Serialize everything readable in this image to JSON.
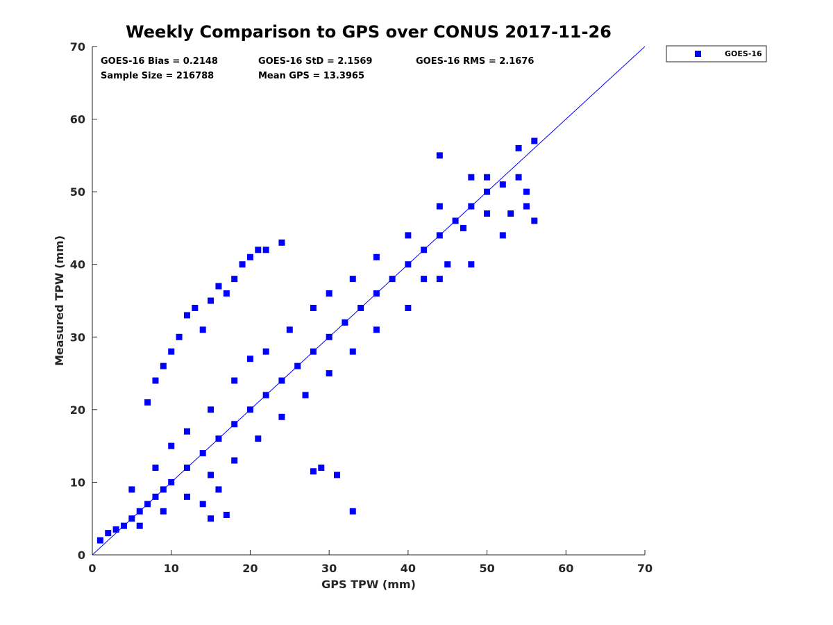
{
  "chart_data": {
    "type": "scatter",
    "title": "Weekly Comparison to GPS over CONUS 2017-11-26",
    "xlabel": "GPS TPW (mm)",
    "ylabel": "Measured TPW (mm)",
    "xlim": [
      0,
      70
    ],
    "ylim": [
      0,
      70
    ],
    "xticks": [
      "0",
      "10",
      "20",
      "30",
      "40",
      "50",
      "60",
      "70"
    ],
    "yticks": [
      "0",
      "10",
      "20",
      "30",
      "40",
      "50",
      "60",
      "70"
    ],
    "grid": false,
    "legend_position": "outside-top-right",
    "series": [
      {
        "name": "GOES-16",
        "color": "#0000ff",
        "marker": "square",
        "points": [
          [
            1,
            2
          ],
          [
            2,
            3
          ],
          [
            3,
            3.5
          ],
          [
            4,
            4
          ],
          [
            5,
            5
          ],
          [
            6,
            6
          ],
          [
            7,
            7
          ],
          [
            8,
            8
          ],
          [
            9,
            9
          ],
          [
            10,
            10
          ],
          [
            12,
            12
          ],
          [
            14,
            14
          ],
          [
            16,
            16
          ],
          [
            18,
            18
          ],
          [
            20,
            20
          ],
          [
            22,
            22
          ],
          [
            24,
            24
          ],
          [
            26,
            26
          ],
          [
            28,
            28
          ],
          [
            30,
            30
          ],
          [
            32,
            32
          ],
          [
            34,
            34
          ],
          [
            36,
            36
          ],
          [
            38,
            38
          ],
          [
            40,
            40
          ],
          [
            42,
            42
          ],
          [
            44,
            44
          ],
          [
            46,
            46
          ],
          [
            48,
            48
          ],
          [
            50,
            50
          ],
          [
            52,
            51
          ],
          [
            54,
            52
          ],
          [
            55,
            50
          ],
          [
            5,
            9
          ],
          [
            8,
            12
          ],
          [
            10,
            15
          ],
          [
            12,
            17
          ],
          [
            15,
            20
          ],
          [
            18,
            24
          ],
          [
            20,
            27
          ],
          [
            22,
            28
          ],
          [
            25,
            31
          ],
          [
            28,
            34
          ],
          [
            30,
            36
          ],
          [
            33,
            38
          ],
          [
            36,
            41
          ],
          [
            40,
            44
          ],
          [
            44,
            48
          ],
          [
            48,
            52
          ],
          [
            6,
            4
          ],
          [
            9,
            6
          ],
          [
            12,
            8
          ],
          [
            15,
            11
          ],
          [
            18,
            13
          ],
          [
            21,
            16
          ],
          [
            24,
            19
          ],
          [
            27,
            22
          ],
          [
            30,
            25
          ],
          [
            33,
            28
          ],
          [
            36,
            31
          ],
          [
            40,
            34
          ],
          [
            44,
            38
          ],
          [
            48,
            40
          ],
          [
            52,
            44
          ],
          [
            56,
            46
          ],
          [
            7,
            21
          ],
          [
            8,
            24
          ],
          [
            9,
            26
          ],
          [
            10,
            28
          ],
          [
            11,
            30
          ],
          [
            12,
            33
          ],
          [
            13,
            34
          ],
          [
            14,
            31
          ],
          [
            15,
            35
          ],
          [
            16,
            37
          ],
          [
            17,
            36
          ],
          [
            18,
            38
          ],
          [
            19,
            40
          ],
          [
            20,
            41
          ],
          [
            21,
            42
          ],
          [
            22,
            42
          ],
          [
            24,
            43
          ],
          [
            28,
            11.5
          ],
          [
            29,
            12
          ],
          [
            31,
            11
          ],
          [
            33,
            6
          ],
          [
            15,
            5
          ],
          [
            17,
            5.5
          ],
          [
            14,
            7
          ],
          [
            16,
            9
          ],
          [
            42,
            38
          ],
          [
            45,
            40
          ],
          [
            47,
            45
          ],
          [
            50,
            47
          ],
          [
            53,
            47
          ],
          [
            55,
            48
          ],
          [
            56,
            57
          ],
          [
            54,
            56
          ],
          [
            44,
            55
          ],
          [
            50,
            52
          ]
        ]
      }
    ],
    "annotations": [
      "GOES-16 Bias = 0.2148",
      "GOES-16 StD = 2.1569",
      "GOES-16 RMS = 2.1676",
      "Sample Size = 216788",
      "Mean GPS = 13.3965"
    ],
    "reference_line": {
      "type": "one-to-one",
      "from": [
        0,
        0
      ],
      "to": [
        70,
        70
      ],
      "color": "#0000ff"
    }
  }
}
